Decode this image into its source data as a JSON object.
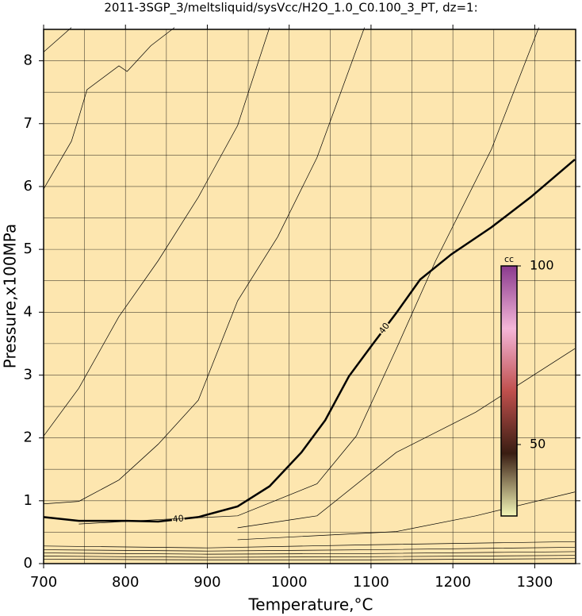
{
  "chart_data": {
    "type": "contour",
    "title": "2011-3SGP_3/meltsliquid/sysVcc/H2O_1.0_C0.100_3_PT, dz=1:",
    "x_label": "Temperature,°C",
    "y_label": "Pressure,x100MPa",
    "xlim": [
      700,
      1350
    ],
    "ylim": [
      0,
      8.5
    ],
    "xticks": [
      700,
      800,
      900,
      1000,
      1100,
      1200,
      1300
    ],
    "yticks": [
      0,
      1,
      2,
      3,
      4,
      5,
      6,
      7,
      8
    ],
    "xgrid": [
      750,
      800,
      850,
      900,
      950,
      1000,
      1050,
      1100,
      1150,
      1200,
      1250,
      1300
    ],
    "ygrid": [
      0.5,
      1,
      1.5,
      2,
      2.5,
      3,
      3.5,
      4,
      4.5,
      5,
      5.5,
      6,
      6.5,
      7,
      7.5,
      8
    ],
    "background": "#fde6af",
    "line_color": "#000000",
    "contours": [
      {
        "x": [
          700,
          743,
          802,
          840,
          889,
          937,
          976,
          1015,
          1044,
          1073,
          1102,
          1131,
          1160,
          1198,
          1247,
          1295,
          1349
        ],
        "y": [
          0.74,
          0.68,
          0.68,
          0.67,
          0.74,
          0.91,
          1.23,
          1.77,
          2.28,
          2.98,
          3.49,
          3.99,
          4.52,
          4.92,
          5.35,
          5.83,
          6.43
        ],
        "bold": true,
        "label": "40",
        "label_at": [
          3,
          10
        ]
      },
      {
        "x": [
          700,
          734
        ],
        "y": [
          8.14,
          8.53
        ]
      },
      {
        "x": [
          700,
          734,
          743,
          753,
          792,
          802,
          831,
          860
        ],
        "y": [
          5.96,
          6.72,
          7.1,
          7.54,
          7.92,
          7.83,
          8.24,
          8.53
        ]
      },
      {
        "x": [
          700,
          743,
          792,
          840,
          889,
          937,
          976
        ],
        "y": [
          2.03,
          2.79,
          3.93,
          4.82,
          5.83,
          6.97,
          8.53
        ]
      },
      {
        "x": [
          700,
          743,
          792,
          840,
          889,
          937,
          986,
          1034,
          1092
        ],
        "y": [
          0.95,
          0.99,
          1.33,
          1.9,
          2.6,
          4.18,
          5.2,
          6.46,
          8.53
        ]
      },
      {
        "x": [
          743,
          840,
          937,
          1034,
          1082,
          1131,
          1179,
          1247,
          1305
        ],
        "y": [
          0.63,
          0.7,
          0.76,
          1.27,
          2.03,
          3.42,
          4.82,
          6.59,
          8.53
        ]
      },
      {
        "x": [
          937,
          1034,
          1131,
          1228,
          1349
        ],
        "y": [
          0.57,
          0.76,
          1.77,
          2.41,
          3.42
        ]
      },
      {
        "x": [
          937,
          1131,
          1228,
          1349
        ],
        "y": [
          0.38,
          0.51,
          0.76,
          1.14
        ]
      },
      {
        "x": [
          700,
          900,
          1100,
          1349
        ],
        "y": [
          0.28,
          0.25,
          0.3,
          0.35
        ]
      },
      {
        "x": [
          700,
          900,
          1100,
          1349
        ],
        "y": [
          0.22,
          0.2,
          0.22,
          0.26
        ]
      },
      {
        "x": [
          700,
          900,
          1100,
          1349
        ],
        "y": [
          0.17,
          0.15,
          0.16,
          0.19
        ]
      },
      {
        "x": [
          700,
          900,
          1100,
          1349
        ],
        "y": [
          0.12,
          0.1,
          0.11,
          0.13
        ]
      },
      {
        "x": [
          700,
          900,
          1100,
          1349
        ],
        "y": [
          0.07,
          0.06,
          0.06,
          0.08
        ]
      }
    ],
    "colorbar": {
      "label": "cc",
      "lim": [
        30,
        100
      ],
      "ticks": [
        50,
        100
      ],
      "colors": [
        "#f4f7b8",
        "#3a1d12",
        "#c0504d",
        "#f4b6d8",
        "#8a3a8e"
      ]
    }
  }
}
